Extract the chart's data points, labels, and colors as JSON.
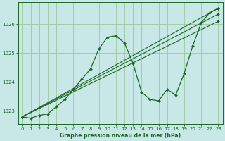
{
  "title": "Graphe pression niveau de la mer (hPa)",
  "bg_color": "#c8e8e8",
  "grid_color": "#a0c8a0",
  "line_color": "#1a6620",
  "marker_color": "#1a6620",
  "xlim": [
    -0.5,
    23.5
  ],
  "ylim": [
    1022.55,
    1026.75
  ],
  "yticks": [
    1023,
    1024,
    1025,
    1026
  ],
  "xticks": [
    0,
    1,
    2,
    3,
    4,
    5,
    6,
    7,
    8,
    9,
    10,
    11,
    12,
    13,
    14,
    15,
    16,
    17,
    18,
    19,
    20,
    21,
    22,
    23
  ],
  "series": [
    {
      "x": [
        0,
        1,
        2,
        3,
        4,
        5,
        6,
        7,
        8,
        9,
        10,
        11,
        12,
        13,
        14,
        15,
        16,
        17,
        18,
        19,
        20,
        21,
        22,
        23
      ],
      "y": [
        1022.8,
        1022.75,
        1022.85,
        1022.9,
        1023.15,
        1023.4,
        1023.75,
        1024.1,
        1024.45,
        1025.15,
        1025.55,
        1025.6,
        1025.35,
        1024.65,
        1023.65,
        1023.4,
        1023.35,
        1023.75,
        1023.55,
        1024.3,
        1025.25,
        1026.05,
        1026.4,
        1026.55
      ]
    },
    {
      "x": [
        0,
        23
      ],
      "y": [
        1022.8,
        1026.55
      ]
    },
    {
      "x": [
        0,
        23
      ],
      "y": [
        1022.8,
        1026.35
      ]
    },
    {
      "x": [
        0,
        23
      ],
      "y": [
        1022.8,
        1026.1
      ]
    }
  ]
}
